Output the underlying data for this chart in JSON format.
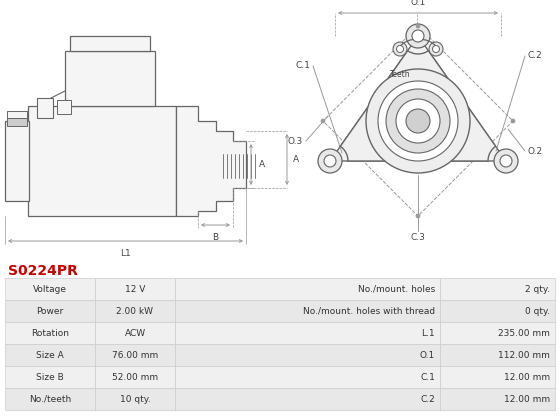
{
  "title": "S0224PR",
  "title_color": "#cc0000",
  "bg_color": "#ffffff",
  "table_row_bg1": "#f0f0f0",
  "table_row_bg2": "#e8e8e8",
  "table_border_color": "#cccccc",
  "rows": [
    [
      "Voltage",
      "12 V",
      "No./mount. holes",
      "2 qty."
    ],
    [
      "Power",
      "2.00 kW",
      "No./mount. holes with thread",
      "0 qty."
    ],
    [
      "Rotation",
      "ACW",
      "L.1",
      "235.00 mm"
    ],
    [
      "Size A",
      "76.00 mm",
      "O.1",
      "112.00 mm"
    ],
    [
      "Size B",
      "52.00 mm",
      "C.1",
      "12.00 mm"
    ],
    [
      "No./teeth",
      "10 qty.",
      "C.2",
      "12.00 mm"
    ]
  ],
  "line_color": "#666666",
  "dim_color": "#999999",
  "label_color": "#444444",
  "fill_light": "#f5f5f5",
  "fill_medium": "#e8e8e8"
}
